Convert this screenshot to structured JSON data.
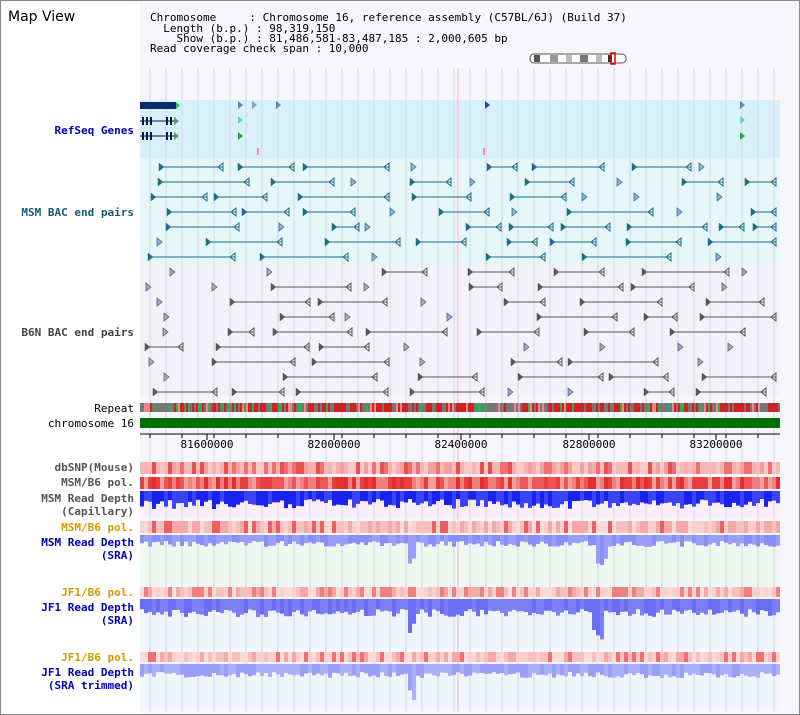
{
  "title": "Map View",
  "info": {
    "chromosome_line": "Chromosome     : Chromosome 16, reference assembly (C57BL/6J) (Build 37)",
    "length_line": "  Length (b.p.) : 98,319,150",
    "show_line": "    Show (b.p.) : 81,486,581-83,487,185 : 2,000,605 bp",
    "coverage_line": "Read coverage check span : 10,000"
  },
  "tracks": {
    "refseq": "RefSeq Genes",
    "msm_bac": "MSM BAC end pairs",
    "b6n_bac": "B6N BAC end pairs",
    "repeat": "Repeat",
    "chromosome": "chromosome 16",
    "dbsnp": "dbSNP(Mouse)",
    "msm_b6_pol_1": "MSM/B6 pol.",
    "msm_depth_cap_1": "MSM Read Depth",
    "msm_depth_cap_2": "(Capillary)",
    "msm_b6_pol_2": "MSM/B6 pol.",
    "msm_depth_sra_1": "MSM Read Depth",
    "msm_depth_sra_2": "(SRA)",
    "jf1_b6_pol_1": "JF1/B6 pol.",
    "jf1_depth_sra_1": "JF1 Read Depth",
    "jf1_depth_sra_2": "(SRA)",
    "jf1_b6_pol_2": "JF1/B6 pol.",
    "jf1_depth_trim_1": "JF1 Read Depth",
    "jf1_depth_trim_2": "(SRA trimmed)"
  },
  "axis_ticks": [
    "81600000",
    "82000000",
    "82400000",
    "82800000",
    "83200000"
  ],
  "colors": {
    "refseq_bg": "#d8f0fa",
    "msm_bg": "#e6f7fa",
    "b6n_bg": "#f2f2f8",
    "chromosome": "#007000",
    "depth_blue": "#1a1aee",
    "depth_lightblue": "#8888ff",
    "pol_red": "#e53030",
    "grid": "#d6d6ea"
  }
}
